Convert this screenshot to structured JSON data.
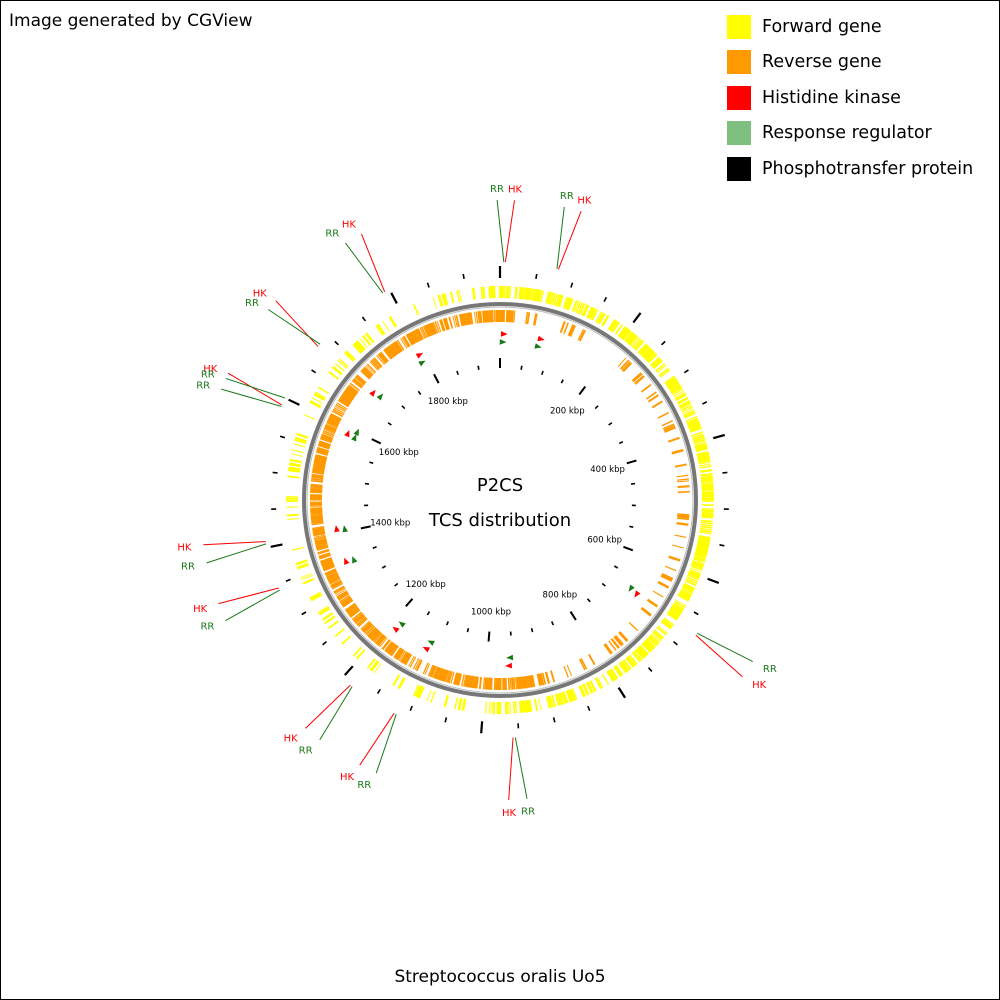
{
  "credit": "Image generated by CGView",
  "legend": [
    {
      "label": "Forward gene",
      "color": "#ffff00"
    },
    {
      "label": "Reverse gene",
      "color": "#ff9900"
    },
    {
      "label": "Histidine kinase",
      "color": "#ff0000"
    },
    {
      "label": "Response regulator",
      "color": "#7fbf7f"
    },
    {
      "label": "Phosphotransfer protein",
      "color": "#000000"
    }
  ],
  "center": {
    "line1": "P2CS",
    "line2": "TCS distribution"
  },
  "footer": "Streptococcus oralis Uo5",
  "genome": {
    "length_kbp": 1950,
    "axis_labels": [
      "200 kbp",
      "400 kbp",
      "600 kbp",
      "800 kbp",
      "1000 kbp",
      "1200 kbp",
      "1400 kbp",
      "1600 kbp",
      "1800 kbp"
    ]
  },
  "genes": [
    {
      "pos": 5,
      "type": "RR",
      "label": "RR",
      "color": "#1a7a1a"
    },
    {
      "pos": 7,
      "type": "HK",
      "label": "HK",
      "color": "#ff0000"
    },
    {
      "pos": 75,
      "type": "RR",
      "label": "RR",
      "color": "#1a7a1a"
    },
    {
      "pos": 77,
      "type": "HK",
      "label": "HK",
      "color": "#ff0000"
    },
    {
      "pos": 672,
      "type": "RR",
      "label": "RR",
      "color": "#1a7a1a"
    },
    {
      "pos": 675,
      "type": "HK",
      "label": "HK",
      "color": "#ff0000"
    },
    {
      "pos": 955,
      "type": "RR",
      "label": "RR",
      "color": "#1a7a1a"
    },
    {
      "pos": 958,
      "type": "HK",
      "label": "HK",
      "color": "#ff0000"
    },
    {
      "pos": 1115,
      "type": "RR",
      "label": "RR",
      "color": "#1a7a1a"
    },
    {
      "pos": 1118,
      "type": "HK",
      "label": "HK",
      "color": "#ff0000"
    },
    {
      "pos": 1183,
      "type": "RR",
      "label": "RR",
      "color": "#1a7a1a"
    },
    {
      "pos": 1186,
      "type": "HK",
      "label": "HK",
      "color": "#ff0000"
    },
    {
      "pos": 1342,
      "type": "RR",
      "label": "RR",
      "color": "#1a7a1a"
    },
    {
      "pos": 1345,
      "type": "HK",
      "label": "HK",
      "color": "#ff0000"
    },
    {
      "pos": 1405,
      "type": "RR",
      "label": "RR",
      "color": "#1a7a1a"
    },
    {
      "pos": 1408,
      "type": "HK",
      "label": "HK",
      "color": "#ff0000"
    },
    {
      "pos": 1588,
      "type": "RR",
      "label": "RR",
      "color": "#1a7a1a"
    },
    {
      "pos": 1590,
      "type": "HK",
      "label": "HK",
      "color": "#ff0000"
    },
    {
      "pos": 1600,
      "type": "RR",
      "label": "RR",
      "color": "#1a7a1a"
    },
    {
      "pos": 1680,
      "type": "HK",
      "label": "HK",
      "color": "#ff0000"
    },
    {
      "pos": 1684,
      "type": "RR",
      "label": "RR",
      "color": "#1a7a1a"
    },
    {
      "pos": 1790,
      "type": "RR",
      "label": "RR",
      "color": "#1a7a1a"
    },
    {
      "pos": 1793,
      "type": "HK",
      "label": "HK",
      "color": "#ff0000"
    }
  ]
}
